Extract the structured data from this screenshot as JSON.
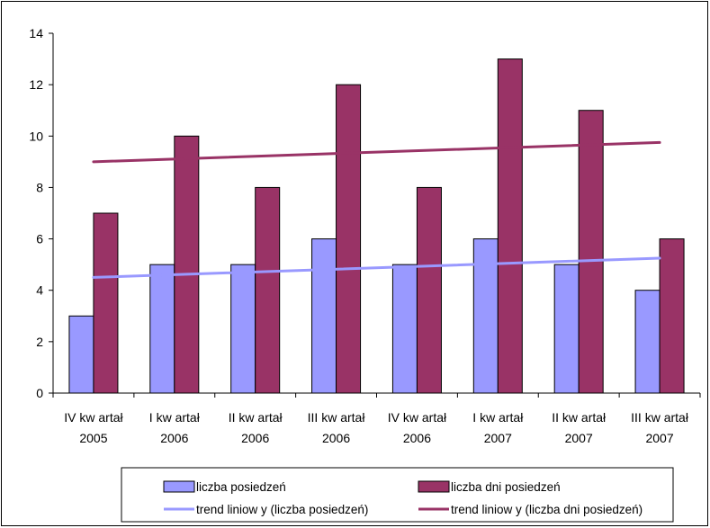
{
  "chart_data": {
    "type": "bar",
    "categories": [
      [
        "IV kw artał",
        "2005"
      ],
      [
        "I kw artał",
        "2006"
      ],
      [
        "II kw artał",
        "2006"
      ],
      [
        "III kw artał",
        "2006"
      ],
      [
        "IV kw artał",
        "2006"
      ],
      [
        "I kw artał",
        "2007"
      ],
      [
        "II kw artał",
        "2007"
      ],
      [
        "III kw artał",
        "2007"
      ]
    ],
    "series": [
      {
        "name": "liczba posiedzeń",
        "values": [
          3,
          5,
          5,
          6,
          5,
          6,
          5,
          4
        ],
        "color": "#9999ff"
      },
      {
        "name": "liczba dni posiedzeń",
        "values": [
          7,
          10,
          8,
          12,
          8,
          13,
          11,
          6
        ],
        "color": "#993366"
      }
    ],
    "trendlines": [
      {
        "name": "trend liniow y (liczba posiedzeń)",
        "of_series": 0,
        "color": "#9999ff"
      },
      {
        "name": "trend liniow y (liczba dni posiedzeń)",
        "of_series": 1,
        "color": "#993366"
      }
    ],
    "yticks": [
      "0",
      "2",
      "4",
      "6",
      "8",
      "10",
      "12",
      "14"
    ],
    "ylim": [
      0,
      14
    ],
    "grid": false,
    "legend_position": "bottom"
  }
}
